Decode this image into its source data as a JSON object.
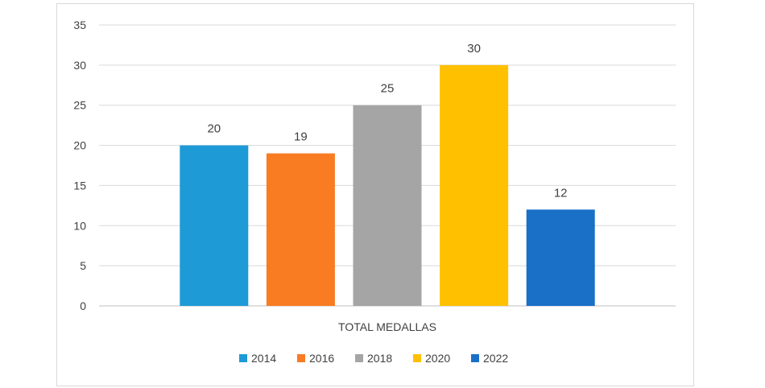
{
  "chart_data": {
    "type": "bar",
    "categories": [
      "TOTAL MEDALLAS"
    ],
    "series": [
      {
        "name": "2014",
        "values": [
          20
        ],
        "color": "#1e9ad6"
      },
      {
        "name": "2016",
        "values": [
          19
        ],
        "color": "#f97b22"
      },
      {
        "name": "2018",
        "values": [
          25
        ],
        "color": "#a5a5a5"
      },
      {
        "name": "2020",
        "values": [
          30
        ],
        "color": "#ffc000"
      },
      {
        "name": "2022",
        "values": [
          12
        ],
        "color": "#1a6fc7"
      }
    ],
    "title": "",
    "xlabel": "",
    "ylabel": "",
    "ylim": [
      0,
      35
    ],
    "yticks": [
      0,
      5,
      10,
      15,
      20,
      25,
      30,
      35
    ],
    "grid": true,
    "data_labels": true,
    "legend_position": "bottom"
  }
}
